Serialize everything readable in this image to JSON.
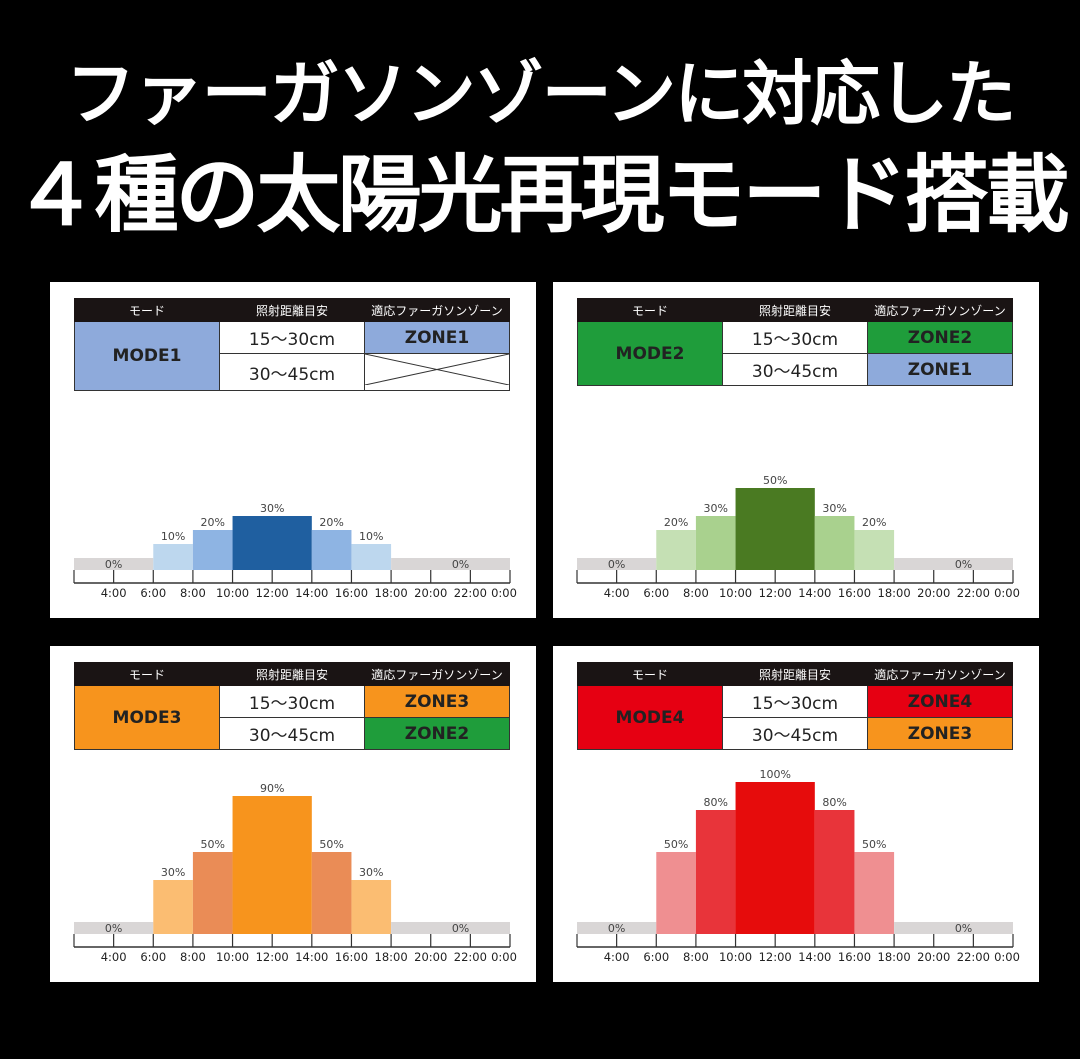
{
  "headline": {
    "line1": "ファーガソンゾーンに対応した",
    "line2": "４種の太陽光再現モード搭載"
  },
  "table_headers": [
    "モード",
    "照射距離目安",
    "適応ファーガソンゾーン"
  ],
  "distances": [
    "15〜30cm",
    "30〜45cm"
  ],
  "colors": {
    "zone1": "#8eaadb",
    "zone2": "#1f9d3b",
    "zone3": "#f7941d",
    "zone4": "#e60012",
    "zero": "#d9d6d6"
  },
  "chart_data": [
    {
      "type": "bar",
      "mode": "MODE1",
      "mode_color": "#8eaadb",
      "zones": [
        {
          "label": "ZONE1",
          "color": "#8eaadb"
        },
        {
          "label": "",
          "color": "none"
        }
      ],
      "ticks": [
        "4:00",
        "6:00",
        "8:00",
        "10:00",
        "12:00",
        "14:00",
        "16:00",
        "18:00",
        "20:00",
        "22:00",
        "0:00"
      ],
      "bars": [
        {
          "start": null,
          "end": "6:00",
          "value": 0,
          "label": "0%",
          "color": "#d9d6d6"
        },
        {
          "start": "6:00",
          "end": "8:00",
          "value": 10,
          "label": "10%",
          "color": "#bdd7ee"
        },
        {
          "start": "8:00",
          "end": "10:00",
          "value": 20,
          "label": "20%",
          "color": "#8eb4e3"
        },
        {
          "start": "10:00",
          "end": "14:00",
          "value": 30,
          "label": "30%",
          "color": "#1f5fa0"
        },
        {
          "start": "14:00",
          "end": "16:00",
          "value": 20,
          "label": "20%",
          "color": "#8eb4e3"
        },
        {
          "start": "16:00",
          "end": "18:00",
          "value": 10,
          "label": "10%",
          "color": "#bdd7ee"
        },
        {
          "start": "18:00",
          "end": "0:00",
          "value": 0,
          "label": "0%",
          "color": "#d9d6d6"
        }
      ]
    },
    {
      "type": "bar",
      "mode": "MODE2",
      "mode_color": "#1f9d3b",
      "zones": [
        {
          "label": "ZONE2",
          "color": "#1f9d3b"
        },
        {
          "label": "ZONE1",
          "color": "#8eaadb"
        }
      ],
      "ticks": [
        "4:00",
        "6:00",
        "8:00",
        "10:00",
        "12:00",
        "14:00",
        "16:00",
        "18:00",
        "20:00",
        "22:00",
        "0:00"
      ],
      "bars": [
        {
          "start": null,
          "end": "6:00",
          "value": 0,
          "label": "0%",
          "color": "#d9d6d6"
        },
        {
          "start": "6:00",
          "end": "8:00",
          "value": 20,
          "label": "20%",
          "color": "#c5e0b4"
        },
        {
          "start": "8:00",
          "end": "10:00",
          "value": 30,
          "label": "30%",
          "color": "#a9d18e"
        },
        {
          "start": "10:00",
          "end": "14:00",
          "value": 50,
          "label": "50%",
          "color": "#4a7a22"
        },
        {
          "start": "14:00",
          "end": "16:00",
          "value": 30,
          "label": "30%",
          "color": "#a9d18e"
        },
        {
          "start": "16:00",
          "end": "18:00",
          "value": 20,
          "label": "20%",
          "color": "#c5e0b4"
        },
        {
          "start": "18:00",
          "end": "0:00",
          "value": 0,
          "label": "0%",
          "color": "#d9d6d6"
        }
      ]
    },
    {
      "type": "bar",
      "mode": "MODE3",
      "mode_color": "#f7941d",
      "zones": [
        {
          "label": "ZONE3",
          "color": "#f7941d"
        },
        {
          "label": "ZONE2",
          "color": "#1f9d3b"
        }
      ],
      "ticks": [
        "4:00",
        "6:00",
        "8:00",
        "10:00",
        "12:00",
        "14:00",
        "16:00",
        "18:00",
        "20:00",
        "22:00",
        "0:00"
      ],
      "bars": [
        {
          "start": null,
          "end": "6:00",
          "value": 0,
          "label": "0%",
          "color": "#d9d6d6"
        },
        {
          "start": "6:00",
          "end": "8:00",
          "value": 30,
          "label": "30%",
          "color": "#fbbd72"
        },
        {
          "start": "8:00",
          "end": "10:00",
          "value": 50,
          "label": "50%",
          "color": "#ea8c56"
        },
        {
          "start": "10:00",
          "end": "14:00",
          "value": 90,
          "label": "90%",
          "color": "#f7941d"
        },
        {
          "start": "14:00",
          "end": "16:00",
          "value": 50,
          "label": "50%",
          "color": "#ea8c56"
        },
        {
          "start": "16:00",
          "end": "18:00",
          "value": 30,
          "label": "30%",
          "color": "#fbbd72"
        },
        {
          "start": "18:00",
          "end": "0:00",
          "value": 0,
          "label": "0%",
          "color": "#d9d6d6"
        }
      ]
    },
    {
      "type": "bar",
      "mode": "MODE4",
      "mode_color": "#e60012",
      "zones": [
        {
          "label": "ZONE4",
          "color": "#e60012"
        },
        {
          "label": "ZONE3",
          "color": "#f7941d"
        }
      ],
      "ticks": [
        "4:00",
        "6:00",
        "8:00",
        "10:00",
        "12:00",
        "14:00",
        "16:00",
        "18:00",
        "20:00",
        "22:00",
        "0:00"
      ],
      "bars": [
        {
          "start": null,
          "end": "6:00",
          "value": 0,
          "label": "0%",
          "color": "#d9d6d6"
        },
        {
          "start": "6:00",
          "end": "8:00",
          "value": 50,
          "label": "50%",
          "color": "#ef8f91"
        },
        {
          "start": "8:00",
          "end": "10:00",
          "value": 80,
          "label": "80%",
          "color": "#e8343a"
        },
        {
          "start": "10:00",
          "end": "14:00",
          "value": 100,
          "label": "100%",
          "color": "#e60c0c"
        },
        {
          "start": "14:00",
          "end": "16:00",
          "value": 80,
          "label": "80%",
          "color": "#e8343a"
        },
        {
          "start": "16:00",
          "end": "18:00",
          "value": 50,
          "label": "50%",
          "color": "#ef8f91"
        },
        {
          "start": "18:00",
          "end": "0:00",
          "value": 0,
          "label": "0%",
          "color": "#d9d6d6"
        }
      ]
    }
  ]
}
